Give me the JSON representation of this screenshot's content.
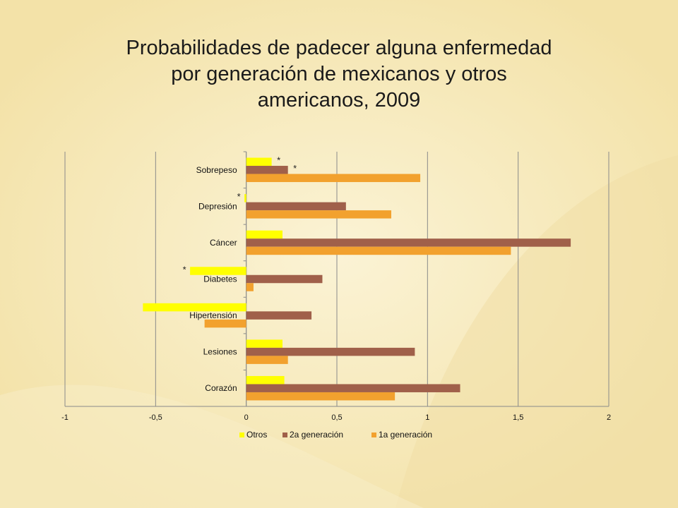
{
  "slide": {
    "title": "Probabilidades de padecer alguna enfermedad por generación de mexicanos y otros americanos, 2009",
    "title_lines": [
      "Probabilidades de padecer alguna enfermedad",
      "por generación de mexicanos y otros",
      "americanos, 2009"
    ]
  },
  "chart_data": {
    "type": "bar",
    "orientation": "horizontal",
    "title": "Probabilidades de padecer alguna enfermedad por generación de mexicanos y otros americanos, 2009",
    "categories": [
      "Sobrepeso",
      "Depresión",
      "Cáncer",
      "Diabetes",
      "Hipertensión",
      "Lesiones",
      "Corazón"
    ],
    "series": [
      {
        "name": "Otros",
        "color": "#ffff00",
        "values": [
          0.14,
          -0.01,
          0.2,
          -0.31,
          -0.57,
          0.2,
          0.21
        ]
      },
      {
        "name": "2a generación",
        "color": "#a0604a",
        "values": [
          0.23,
          0.55,
          1.79,
          0.42,
          0.36,
          0.93,
          1.18
        ]
      },
      {
        "name": "1a generación",
        "color": "#f2a12e",
        "values": [
          0.96,
          0.8,
          1.46,
          0.04,
          -0.23,
          0.23,
          0.82
        ]
      }
    ],
    "annotations": [
      {
        "category": "Sobrepeso",
        "series": "Otros",
        "text": "*"
      },
      {
        "category": "Sobrepeso",
        "series": "2a generación",
        "text": "*"
      },
      {
        "category": "Depresión",
        "series": "Otros",
        "text": "*"
      },
      {
        "category": "Diabetes",
        "series": "Otros",
        "text": "*"
      }
    ],
    "xlim": [
      -1,
      2
    ],
    "ticks": [
      "-1",
      "-0,5",
      "0",
      "0,5",
      "1",
      "1,5",
      "2"
    ],
    "tick_values": [
      -1,
      -0.5,
      0,
      0.5,
      1,
      1.5,
      2
    ],
    "grid": "vertical",
    "legend": "bottom",
    "background_color": "#f6e9bd"
  }
}
